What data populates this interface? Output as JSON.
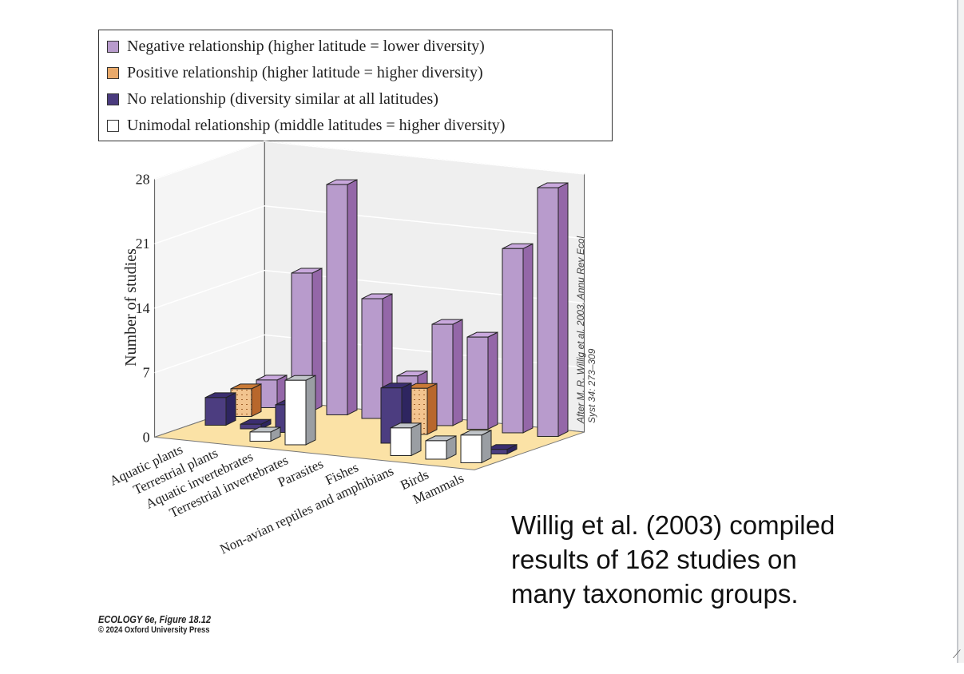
{
  "chart_data": {
    "type": "bar",
    "subtype": "3d-grouped",
    "ylabel": "Number of studies",
    "ylim": [
      0,
      28
    ],
    "yticks": [
      0,
      7,
      14,
      21,
      28
    ],
    "grid": true,
    "legend_position": "top",
    "categories": [
      "Aquatic plants",
      "Terrestrial plants",
      "Aquatic invertebrates",
      "Terrestrial invertebrates",
      "Parasites",
      "Fishes",
      "Non-avian reptiles and amphibians",
      "Birds",
      "Mammals"
    ],
    "series": [
      {
        "name": "Negative relationship (higher latitude = lower diversity)",
        "color": "#b89bcc",
        "values": [
          3,
          15,
          25,
          13,
          5,
          11,
          10,
          20,
          27
        ]
      },
      {
        "name": "Positive relationship (higher latitude = higher diversity)",
        "color": "#e9a96a",
        "values": [
          3,
          0,
          0,
          0,
          0,
          5,
          0,
          0,
          0
        ]
      },
      {
        "name": "No relationship (diversity similar at all latitudes)",
        "color": "#4a3b7e",
        "values": [
          3,
          0.5,
          3,
          0,
          0,
          6,
          0,
          0,
          0.5
        ]
      },
      {
        "name": "Unimodal relationship (middle latitudes = higher diversity)",
        "color": "#ffffff",
        "values": [
          0,
          0,
          1,
          7,
          0,
          0,
          3,
          2,
          3
        ]
      }
    ]
  },
  "source_credit": [
    "After M. R. Willig et al. 2003. Annu Rev Ecol",
    "Syst 34: 273–309"
  ],
  "figure_credit": {
    "line1": "ECOLOGY 6e, Figure 18.12",
    "line2": "© 2024 Oxford University Press"
  },
  "caption": [
    "Willig et al. (2003) compiled",
    "results of 162 studies on",
    "many taxonomic groups."
  ]
}
